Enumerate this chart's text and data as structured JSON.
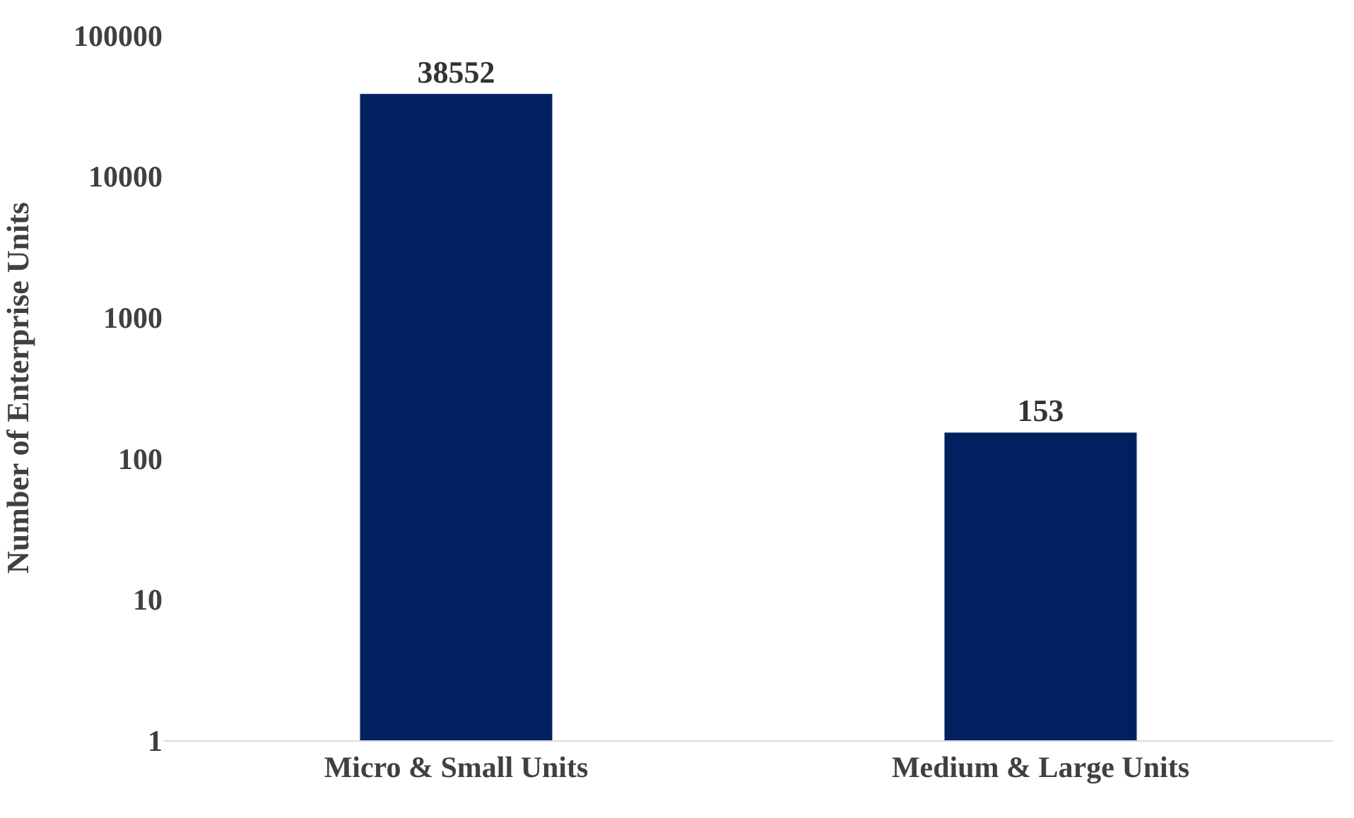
{
  "chart_data": {
    "type": "bar",
    "ylabel": "Number of Enterprise Units",
    "categories": [
      "Micro & Small Units",
      "Medium & Large Units"
    ],
    "values": [
      38552,
      153
    ],
    "color": "#002060",
    "log": true,
    "ylim": [
      1,
      100000
    ],
    "yticks": [
      1,
      10,
      100,
      1000,
      10000,
      100000
    ],
    "legend": false,
    "data_labels": true
  }
}
